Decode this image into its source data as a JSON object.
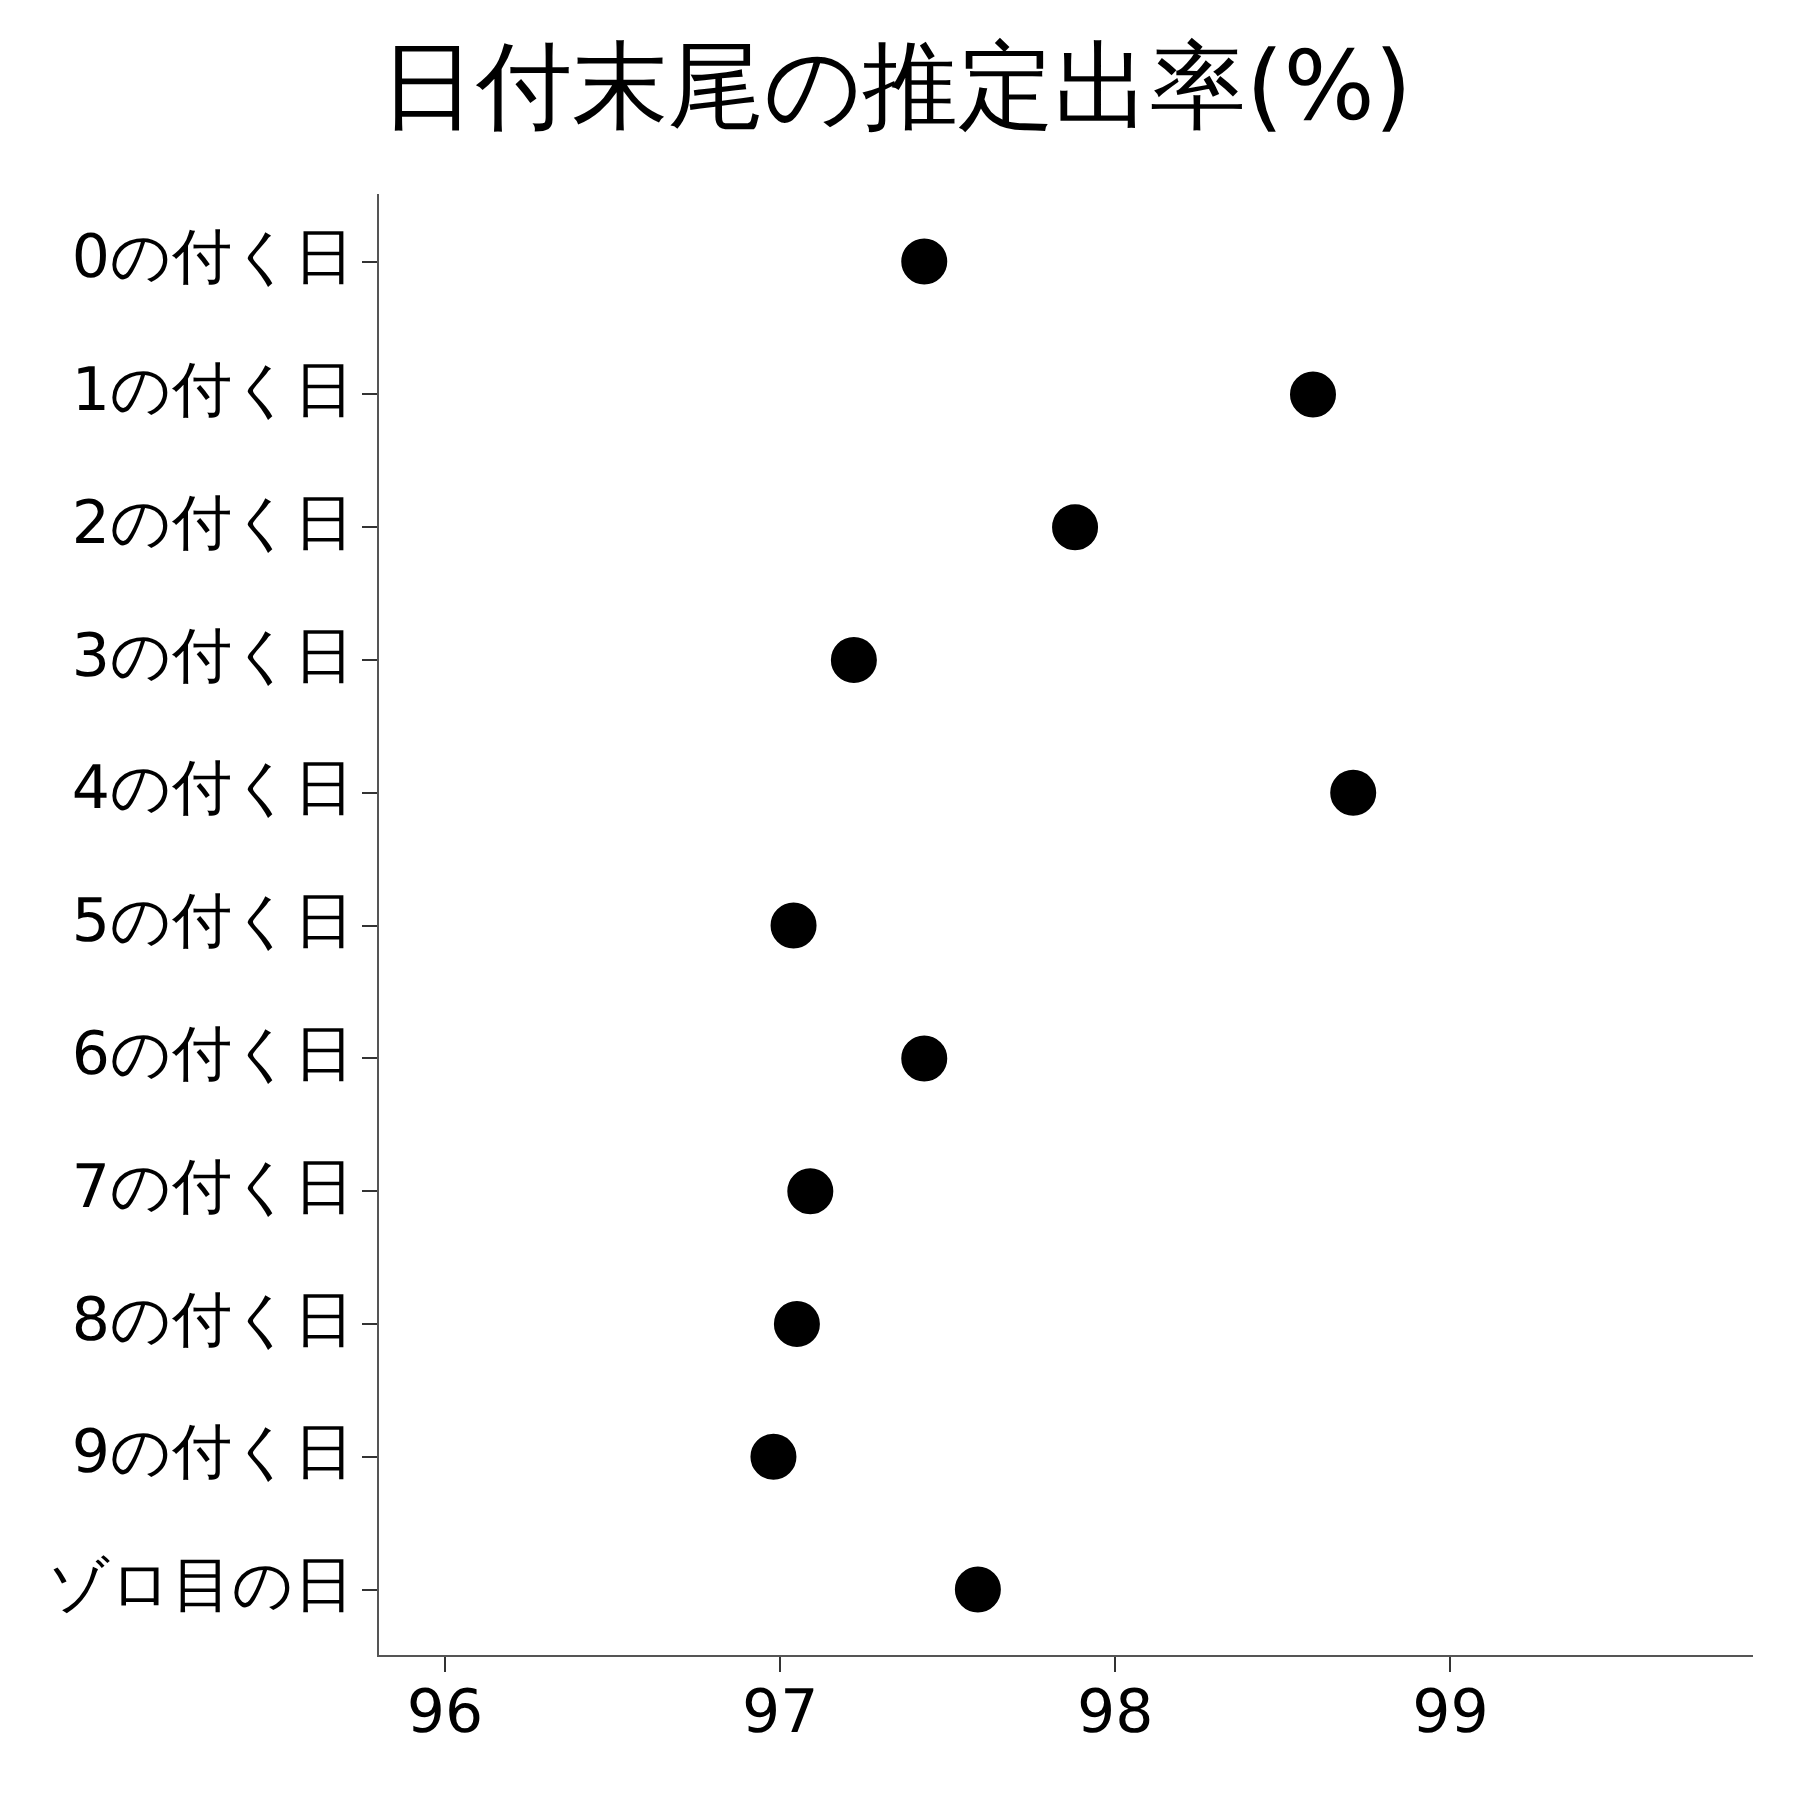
{
  "chart_data": {
    "type": "scatter",
    "title": "日付末尾の推定出率(%)",
    "orientation": "horizontal",
    "categories": [
      "0の付く日",
      "1の付く日",
      "2の付く日",
      "3の付く日",
      "4の付く日",
      "5の付く日",
      "6の付く日",
      "7の付く日",
      "8の付く日",
      "9の付く日",
      "ゾロ目の日"
    ],
    "values": [
      97.43,
      98.59,
      97.88,
      97.22,
      98.71,
      97.04,
      97.43,
      97.09,
      97.05,
      96.98,
      97.59
    ],
    "color": "#000000",
    "marker": "circle",
    "xlim": [
      95.8,
      99.9
    ],
    "xticks": [
      96,
      97,
      98,
      99
    ],
    "grid": false,
    "legend": false
  }
}
